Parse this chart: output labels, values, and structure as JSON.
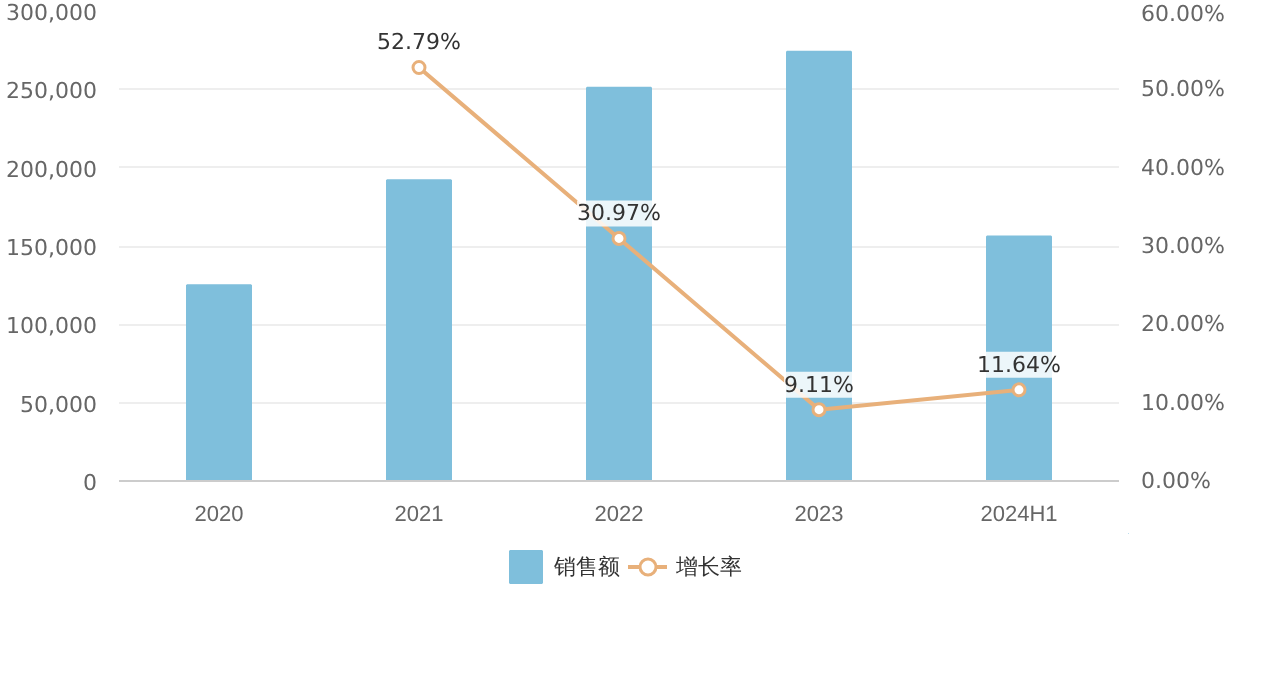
{
  "chart_data": {
    "type": "bar",
    "categories": [
      "2020",
      "2021",
      "2022",
      "2023",
      "2024H1"
    ],
    "series": [
      {
        "name": "销售额",
        "color": "#7fbfdc",
        "values": [
          125000,
          192000,
          251000,
          274000,
          156000
        ]
      },
      {
        "name": "增长率",
        "type": "line",
        "axis": "y2",
        "color": "#e8b07a",
        "marker": "circle",
        "values": [
          null,
          52.79,
          30.97,
          9.11,
          11.64
        ],
        "value_labels": [
          null,
          "52.79%",
          "30.97%",
          "9.11%",
          "11.64%"
        ]
      }
    ],
    "ylim": [
      0,
      300000
    ],
    "yticks": [
      {
        "value": 0,
        "label": "0"
      },
      {
        "value": 50000,
        "label": "50,000"
      },
      {
        "value": 100000,
        "label": "100,000"
      },
      {
        "value": 150000,
        "label": "150,000"
      },
      {
        "value": 200000,
        "label": "200,000"
      },
      {
        "value": 250000,
        "label": "250,000"
      },
      {
        "value": 300000,
        "label": "300,000"
      }
    ],
    "y2lim": [
      0,
      60
    ],
    "y2ticks": [
      {
        "value": 0,
        "label": "0.00%"
      },
      {
        "value": 10,
        "label": "10.00%"
      },
      {
        "value": 20,
        "label": "20.00%"
      },
      {
        "value": 30,
        "label": "30.00%"
      },
      {
        "value": 40,
        "label": "40.00%"
      },
      {
        "value": 50,
        "label": "50.00%"
      },
      {
        "value": 60,
        "label": "60.00%"
      }
    ],
    "grid": "y",
    "legend": "bottom"
  }
}
